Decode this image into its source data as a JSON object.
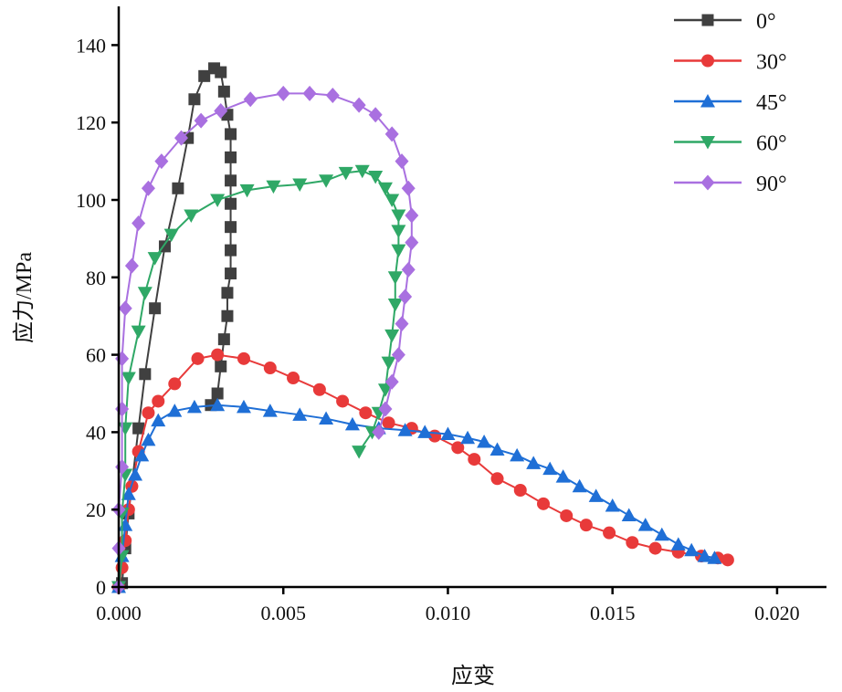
{
  "chart_data": {
    "type": "line",
    "title": "",
    "xlabel": "应变",
    "ylabel": "应力/MPa",
    "xlim": [
      0,
      0.0215
    ],
    "ylim": [
      0,
      150
    ],
    "xticks": [
      "0.000",
      "0.005",
      "0.010",
      "0.015",
      "0.020"
    ],
    "xtick_values": [
      0,
      0.005,
      0.01,
      0.015,
      0.02
    ],
    "yticks": [
      "0",
      "20",
      "40",
      "60",
      "80",
      "100",
      "120",
      "140"
    ],
    "ytick_values": [
      0,
      20,
      40,
      60,
      80,
      100,
      120,
      140
    ],
    "grid": false,
    "legend_position": "top-right",
    "series": [
      {
        "name": "0°",
        "color": "#404040",
        "marker": "square",
        "x": [
          0,
          0.0001,
          0.0002,
          0.0003,
          0.0006,
          0.0008,
          0.0011,
          0.0014,
          0.0018,
          0.0021,
          0.0023,
          0.0026,
          0.0029,
          0.0031,
          0.0032,
          0.0033,
          0.0034,
          0.0034,
          0.0034,
          0.0034,
          0.0034,
          0.0034,
          0.0034,
          0.0033,
          0.0033,
          0.0032,
          0.0031,
          0.003,
          0.0028
        ],
        "y": [
          0,
          1,
          10,
          19,
          41,
          55,
          72,
          88,
          103,
          116,
          126,
          132,
          134,
          133,
          128,
          122,
          117,
          111,
          105,
          99,
          93,
          87,
          81,
          76,
          70,
          64,
          57,
          50,
          47
        ]
      },
      {
        "name": "30°",
        "color": "#e83a3a",
        "marker": "circle",
        "x": [
          0,
          0.0001,
          0.0002,
          0.0003,
          0.0004,
          0.0006,
          0.0009,
          0.0012,
          0.0017,
          0.0024,
          0.003,
          0.0038,
          0.0046,
          0.0053,
          0.0061,
          0.0068,
          0.0075,
          0.0082,
          0.0089,
          0.0096,
          0.0103,
          0.0108,
          0.0115,
          0.0122,
          0.0129,
          0.0136,
          0.0142,
          0.0149,
          0.0156,
          0.0163,
          0.017,
          0.0177,
          0.0182,
          0.0185
        ],
        "y": [
          0,
          5,
          12,
          20,
          26,
          35,
          45,
          48,
          52.5,
          59,
          60,
          59,
          56.6,
          54,
          51,
          48,
          45,
          42.4,
          41,
          39,
          36,
          33,
          28,
          25,
          21.5,
          18.4,
          16,
          14,
          11.5,
          10,
          9,
          8,
          7.5,
          7
        ]
      },
      {
        "name": "45°",
        "color": "#1f6fd6",
        "marker": "triangle-up",
        "x": [
          0,
          0.0001,
          0.0002,
          0.0003,
          0.0005,
          0.0007,
          0.0009,
          0.0012,
          0.0017,
          0.0023,
          0.003,
          0.0038,
          0.0046,
          0.0055,
          0.0063,
          0.0071,
          0.0079,
          0.0087,
          0.0093,
          0.01,
          0.0106,
          0.0111,
          0.0115,
          0.0121,
          0.0126,
          0.0131,
          0.0135,
          0.014,
          0.0145,
          0.015,
          0.0155,
          0.016,
          0.0165,
          0.017,
          0.0174,
          0.0178,
          0.0181
        ],
        "y": [
          0,
          8,
          16,
          24,
          29,
          34,
          38,
          43,
          45.5,
          46.5,
          47,
          46.5,
          45.5,
          44.5,
          43.5,
          42,
          41,
          40.5,
          40,
          39.5,
          38.5,
          37.5,
          35.5,
          34,
          32,
          30.5,
          28.5,
          26,
          23.5,
          21,
          18.5,
          16,
          13.5,
          11,
          9.5,
          8,
          7.5
        ]
      },
      {
        "name": "60°",
        "color": "#2fa866",
        "marker": "triangle-down",
        "x": [
          0,
          0.0001,
          0.0001,
          0.0002,
          0.0002,
          0.0003,
          0.0006,
          0.0008,
          0.0011,
          0.0016,
          0.0022,
          0.003,
          0.0039,
          0.0047,
          0.0055,
          0.0063,
          0.0069,
          0.0074,
          0.0078,
          0.0081,
          0.0083,
          0.0085,
          0.0085,
          0.0085,
          0.0084,
          0.0084,
          0.0083,
          0.0082,
          0.0081,
          0.0079,
          0.0077,
          0.0073
        ],
        "y": [
          0,
          8,
          19,
          29,
          41,
          54,
          66,
          76,
          85,
          91,
          96,
          100,
          102.5,
          103.5,
          104,
          105,
          107,
          107.5,
          106,
          103,
          100,
          96,
          92,
          87,
          80,
          73,
          65,
          58,
          51,
          45,
          40,
          35
        ]
      },
      {
        "name": "90°",
        "color": "#a970e0",
        "marker": "diamond",
        "x": [
          0,
          0,
          0,
          0.0001,
          0.0001,
          0.0001,
          0.0002,
          0.0004,
          0.0006,
          0.0009,
          0.0013,
          0.0019,
          0.0025,
          0.0031,
          0.004,
          0.005,
          0.0058,
          0.0065,
          0.0073,
          0.0078,
          0.0083,
          0.0086,
          0.0088,
          0.0089,
          0.0089,
          0.0088,
          0.0087,
          0.0086,
          0.0085,
          0.0083,
          0.0081,
          0.0079
        ],
        "y": [
          0,
          10,
          20,
          31,
          46,
          59,
          72,
          83,
          94,
          103,
          110,
          116,
          120.5,
          123,
          126,
          127.5,
          127.5,
          127,
          124.5,
          122,
          117,
          110,
          103,
          96,
          89,
          82,
          75,
          68,
          60,
          53,
          46,
          40
        ]
      }
    ]
  }
}
